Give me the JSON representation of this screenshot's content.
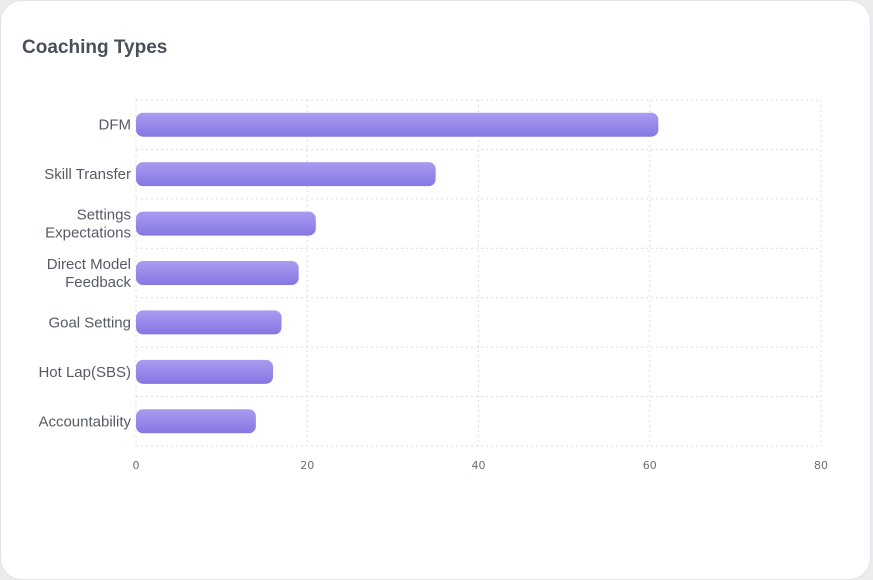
{
  "card": {
    "title": "Coaching Types"
  },
  "chart_data": {
    "type": "bar",
    "orientation": "horizontal",
    "title": "Coaching Types",
    "categories": [
      [
        "DFM"
      ],
      [
        "Skill Transfer"
      ],
      [
        "Settings",
        "Expectations"
      ],
      [
        "Direct Model",
        "Feedback"
      ],
      [
        "Goal Setting"
      ],
      [
        "Hot Lap(SBS)"
      ],
      [
        "Accountability"
      ]
    ],
    "values": [
      61,
      35,
      21,
      19,
      17,
      16,
      14
    ],
    "xlabel": "",
    "ylabel": "",
    "xlim": [
      0,
      80
    ],
    "xticks": [
      "0",
      "20",
      "40",
      "60",
      "80"
    ],
    "grid": true,
    "legend": "none",
    "colors": {
      "bar_top": "#a99cf0",
      "bar_bottom": "#8577e2",
      "grid": "#dcdce2"
    }
  }
}
